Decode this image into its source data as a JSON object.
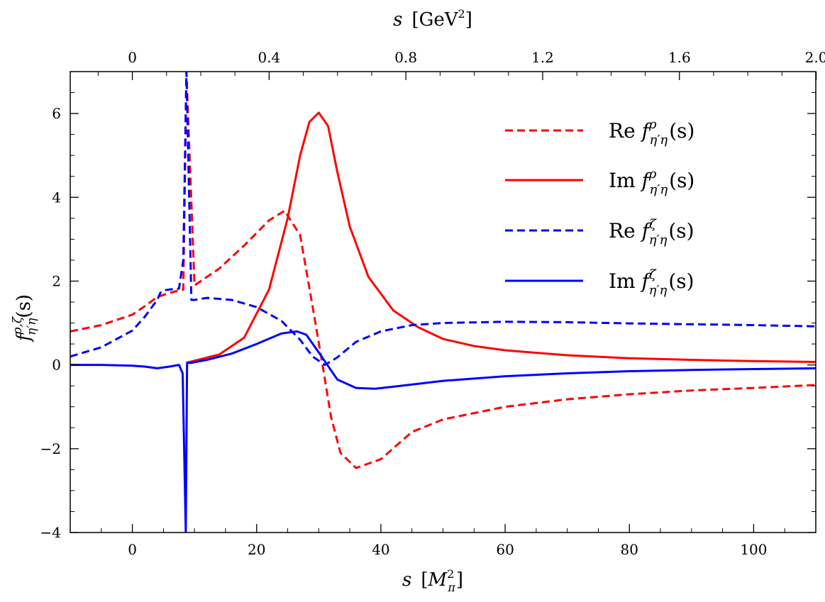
{
  "chart_data": {
    "type": "line",
    "xlabel": "s  [M_π²]",
    "xlabel_parts": {
      "var": "s",
      "unit_main": "M",
      "unit_sub": "π",
      "unit_sup": "2"
    },
    "x2label": "s  [GeV²]",
    "x2label_parts": {
      "var": "s",
      "unit_main": "GeV",
      "unit_sup": "2"
    },
    "ylabel": "f^{ρ,ζ}_{η′η}(s)",
    "ylabel_parts": {
      "main": "f",
      "sup": "ρ,ζ",
      "sub": "η′η",
      "arg": "(s)"
    },
    "xlim": [
      -10,
      110
    ],
    "ylim": [
      -4,
      7
    ],
    "x_ticks": [
      0,
      20,
      40,
      60,
      80,
      100
    ],
    "x_tick_labels": [
      "0",
      "20",
      "40",
      "60",
      "80",
      "100"
    ],
    "x2_ticks": [
      0,
      0.4,
      0.8,
      1.2,
      1.6,
      2.0
    ],
    "x2_tick_labels": [
      "0",
      "0.4",
      "0.8",
      "1.2",
      "1.6",
      "2.0"
    ],
    "y_ticks": [
      -4,
      -2,
      0,
      2,
      4,
      6
    ],
    "y_tick_labels": [
      "−4",
      "−2",
      "0",
      "2",
      "4",
      "6"
    ],
    "legend_position": "upper-right",
    "series": [
      {
        "name": "Re f^ρ_{η′η}(s)",
        "legend": {
          "prefix": "Re",
          "main": "f",
          "sup": "ρ",
          "sub": "η′η",
          "arg": "(s)"
        },
        "color": "#ff0000",
        "style": "dashed",
        "x": [
          -10,
          -5,
          0,
          2,
          4,
          6,
          8.2,
          8.7,
          10,
          14,
          18,
          22,
          24.5,
          27,
          29,
          30.5,
          32,
          33.5,
          36,
          40,
          45,
          50,
          60,
          70,
          80,
          90,
          100,
          110
        ],
        "y": [
          0.8,
          0.95,
          1.2,
          1.4,
          1.62,
          1.72,
          1.8,
          7,
          1.9,
          2.3,
          2.85,
          3.45,
          3.68,
          3.1,
          1.4,
          0.1,
          -1.25,
          -2.1,
          -2.46,
          -2.25,
          -1.6,
          -1.3,
          -1.0,
          -0.82,
          -0.7,
          -0.61,
          -0.55,
          -0.48
        ]
      },
      {
        "name": "Im f^ρ_{η′η}(s)",
        "legend": {
          "prefix": "Im",
          "main": "f",
          "sup": "ρ",
          "sub": "η′η",
          "arg": "(s)"
        },
        "color": "#ff0000",
        "style": "solid",
        "x": [
          8.7,
          10,
          14,
          18,
          22,
          25,
          27,
          28.5,
          30,
          31.5,
          33,
          35,
          38,
          42,
          46,
          50,
          55,
          60,
          70,
          80,
          90,
          100,
          110
        ],
        "y": [
          0.05,
          0.1,
          0.25,
          0.65,
          1.8,
          3.5,
          5.0,
          5.8,
          6.02,
          5.7,
          4.6,
          3.3,
          2.1,
          1.3,
          0.9,
          0.62,
          0.45,
          0.35,
          0.23,
          0.16,
          0.12,
          0.09,
          0.07
        ]
      },
      {
        "name": "Re f^ζ_{η′η}(s)",
        "legend": {
          "prefix": "Re",
          "main": "f",
          "sup": "ζ",
          "sub": "η′η",
          "arg": "(s)"
        },
        "color": "#0000ff",
        "style": "dashed",
        "x": [
          -10,
          -5,
          0,
          2,
          4,
          4.5,
          5,
          6,
          7.5,
          8.2,
          8.7,
          9.5,
          10,
          12,
          16,
          20,
          24,
          27,
          29,
          31,
          33,
          36,
          40,
          45,
          50,
          60,
          70,
          80,
          90,
          100,
          110
        ],
        "y": [
          0.2,
          0.42,
          0.82,
          1.15,
          1.55,
          1.72,
          1.78,
          1.8,
          1.82,
          2.5,
          7,
          1.55,
          1.55,
          1.6,
          1.55,
          1.38,
          1.05,
          0.6,
          0.2,
          0.0,
          0.18,
          0.55,
          0.8,
          0.95,
          1.0,
          1.03,
          1.02,
          0.99,
          0.97,
          0.95,
          0.92
        ]
      },
      {
        "name": "Im f^ζ_{η′η}(s)",
        "legend": {
          "prefix": "Im",
          "main": "f",
          "sup": "ζ",
          "sub": "η′η",
          "arg": "(s)"
        },
        "color": "#0000ff",
        "style": "solid",
        "x": [
          -10,
          -5,
          0,
          2,
          4,
          6,
          7.5,
          8.1,
          8.6,
          8.8,
          9.5,
          12,
          16,
          20,
          24,
          26.5,
          28,
          30,
          33,
          36,
          39,
          42,
          46,
          50,
          60,
          70,
          80,
          90,
          100,
          110
        ],
        "y": [
          0.0,
          0.0,
          -0.02,
          -0.04,
          -0.08,
          -0.04,
          0.0,
          -0.2,
          -4.0,
          0.05,
          0.05,
          0.12,
          0.27,
          0.5,
          0.75,
          0.8,
          0.72,
          0.3,
          -0.35,
          -0.55,
          -0.57,
          -0.52,
          -0.45,
          -0.38,
          -0.27,
          -0.2,
          -0.15,
          -0.12,
          -0.1,
          -0.08
        ]
      }
    ]
  }
}
